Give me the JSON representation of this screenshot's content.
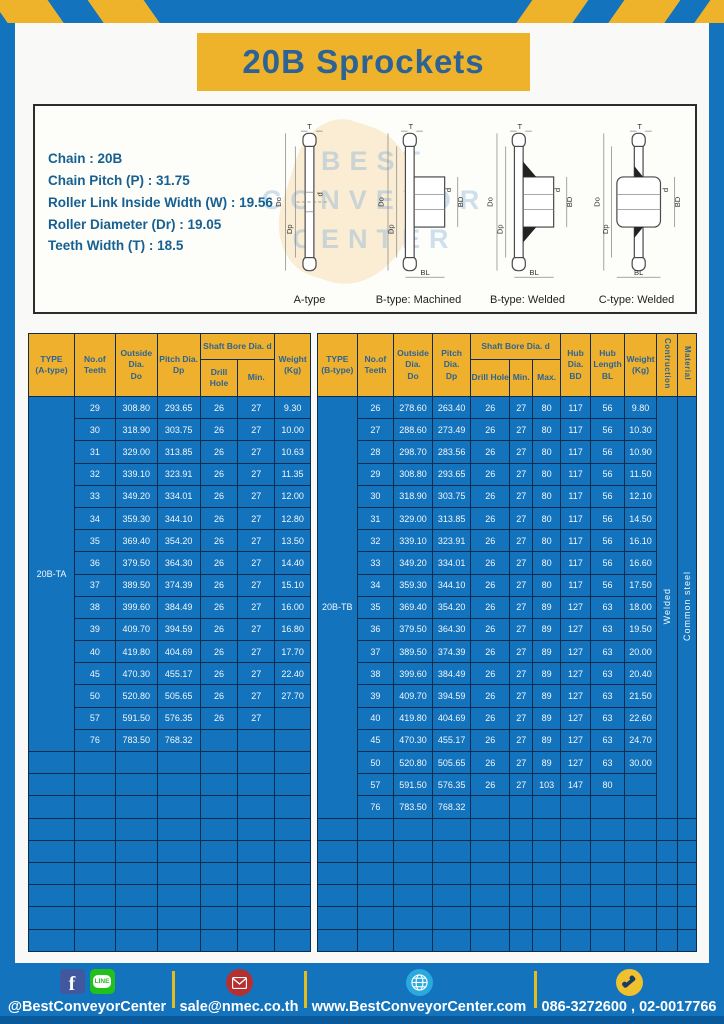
{
  "page": {
    "title": "20B Sprockets"
  },
  "specs": {
    "lines": [
      "Chain : 20B",
      "Chain Pitch (P) : 31.75",
      "Roller Link Inside Width (W) : 19.56",
      "Roller Diameter (Dr) : 19.05",
      "Teeth Width (T) : 18.5"
    ]
  },
  "diagram_panel": {
    "captions": [
      "A-type",
      "B-type: Machined",
      "B-type: Welded",
      "C-type: Welded"
    ],
    "dim_labels": {
      "t": "T",
      "outside": "Do",
      "pitch": "Dp",
      "bore": "d",
      "hub_dia": "BD",
      "hub_len": "BL"
    },
    "watermark": [
      "BEST",
      "CONVEYOR",
      "CENTER"
    ]
  },
  "table_a": {
    "type_label": "20B-TA",
    "header": {
      "type": [
        "TYPE",
        "(A-type)"
      ],
      "teeth": [
        "No.of",
        "Teeth"
      ],
      "outside": [
        "Outside",
        "Dia.",
        "Do"
      ],
      "pitch": [
        "Pitch Dia.",
        "Dp"
      ],
      "shaft_bore": "Shaft Bore Dia. d",
      "drill": "Drill Hole",
      "min": "Min.",
      "weight": [
        "Weight",
        "(Kg)"
      ]
    },
    "rows": [
      [
        "29",
        "308.80",
        "293.65",
        "26",
        "27",
        "9.30"
      ],
      [
        "30",
        "318.90",
        "303.75",
        "26",
        "27",
        "10.00"
      ],
      [
        "31",
        "329.00",
        "313.85",
        "26",
        "27",
        "10.63"
      ],
      [
        "32",
        "339.10",
        "323.91",
        "26",
        "27",
        "11.35"
      ],
      [
        "33",
        "349.20",
        "334.01",
        "26",
        "27",
        "12.00"
      ],
      [
        "34",
        "359.30",
        "344.10",
        "26",
        "27",
        "12.80"
      ],
      [
        "35",
        "369.40",
        "354.20",
        "26",
        "27",
        "13.50"
      ],
      [
        "36",
        "379.50",
        "364.30",
        "26",
        "27",
        "14.40"
      ],
      [
        "37",
        "389.50",
        "374.39",
        "26",
        "27",
        "15.10"
      ],
      [
        "38",
        "399.60",
        "384.49",
        "26",
        "27",
        "16.00"
      ],
      [
        "39",
        "409.70",
        "394.59",
        "26",
        "27",
        "16.80"
      ],
      [
        "40",
        "419.80",
        "404.69",
        "26",
        "27",
        "17.70"
      ],
      [
        "45",
        "470.30",
        "455.17",
        "26",
        "27",
        "22.40"
      ],
      [
        "50",
        "520.80",
        "505.65",
        "26",
        "27",
        "27.70"
      ],
      [
        "57",
        "591.50",
        "576.35",
        "26",
        "27",
        ""
      ],
      [
        "76",
        "783.50",
        "768.32",
        "",
        "",
        ""
      ]
    ],
    "empty_rows": 9
  },
  "table_b": {
    "type_label": "20B-TB",
    "construction": "Welded",
    "material": "Common  steel",
    "header": {
      "type": [
        "TYPE",
        "(B-type)"
      ],
      "teeth": [
        "No.of",
        "Teeth"
      ],
      "outside": [
        "Outside",
        "Dia.",
        "Do"
      ],
      "pitch": [
        "Pitch Dia.",
        "Dp"
      ],
      "shaft_bore": "Shaft Bore Dia. d",
      "drill": "Drill Hole",
      "min": "Min.",
      "max": "Max.",
      "hub_dia": [
        "Hub Dia.",
        "BD"
      ],
      "hub_len": [
        "Hub",
        "Length",
        "BL"
      ],
      "weight": [
        "Weight",
        "(Kg)"
      ],
      "construction": "Contruction",
      "material": "Material"
    },
    "rows": [
      [
        "26",
        "278.60",
        "263.40",
        "26",
        "27",
        "80",
        "117",
        "56",
        "9.80"
      ],
      [
        "27",
        "288.60",
        "273.49",
        "26",
        "27",
        "80",
        "117",
        "56",
        "10.30"
      ],
      [
        "28",
        "298.70",
        "283.56",
        "26",
        "27",
        "80",
        "117",
        "56",
        "10.90"
      ],
      [
        "29",
        "308.80",
        "293.65",
        "26",
        "27",
        "80",
        "117",
        "56",
        "11.50"
      ],
      [
        "30",
        "318.90",
        "303.75",
        "26",
        "27",
        "80",
        "117",
        "56",
        "12.10"
      ],
      [
        "31",
        "329.00",
        "313.85",
        "26",
        "27",
        "80",
        "117",
        "56",
        "14.50"
      ],
      [
        "32",
        "339.10",
        "323.91",
        "26",
        "27",
        "80",
        "117",
        "56",
        "16.10"
      ],
      [
        "33",
        "349.20",
        "334.01",
        "26",
        "27",
        "80",
        "117",
        "56",
        "16.60"
      ],
      [
        "34",
        "359.30",
        "344.10",
        "26",
        "27",
        "80",
        "117",
        "56",
        "17.50"
      ],
      [
        "35",
        "369.40",
        "354.20",
        "26",
        "27",
        "89",
        "127",
        "63",
        "18.00"
      ],
      [
        "36",
        "379.50",
        "364.30",
        "26",
        "27",
        "89",
        "127",
        "63",
        "19.50"
      ],
      [
        "37",
        "389.50",
        "374.39",
        "26",
        "27",
        "89",
        "127",
        "63",
        "20.00"
      ],
      [
        "38",
        "399.60",
        "384.49",
        "26",
        "27",
        "89",
        "127",
        "63",
        "20.40"
      ],
      [
        "39",
        "409.70",
        "394.59",
        "26",
        "27",
        "89",
        "127",
        "63",
        "21.50"
      ],
      [
        "40",
        "419.80",
        "404.69",
        "26",
        "27",
        "89",
        "127",
        "63",
        "22.60"
      ],
      [
        "45",
        "470.30",
        "455.17",
        "26",
        "27",
        "89",
        "127",
        "63",
        "24.70"
      ],
      [
        "50",
        "520.80",
        "505.65",
        "26",
        "27",
        "89",
        "127",
        "63",
        "30.00"
      ],
      [
        "57",
        "591.50",
        "576.35",
        "26",
        "27",
        "103",
        "147",
        "80",
        ""
      ],
      [
        "76",
        "783.50",
        "768.32",
        "",
        "",
        "",
        "",
        "",
        ""
      ]
    ],
    "empty_rows": 6
  },
  "footer": {
    "social_handle": "@BestConveyorCenter",
    "facebook_label": "f",
    "line_label": "LINE",
    "email": "sale@nmec.co.th",
    "website": "www.BestConveyorCenter.com",
    "phones": "086-3272600 , 02-0017766"
  },
  "colors": {
    "frame_blue": "#1373bd",
    "accent_yellow": "#efb32b",
    "header_text_blue": "#2d6394",
    "table_border_navy": "#0e2c4d",
    "footer_dark_blue": "#0a599a"
  }
}
